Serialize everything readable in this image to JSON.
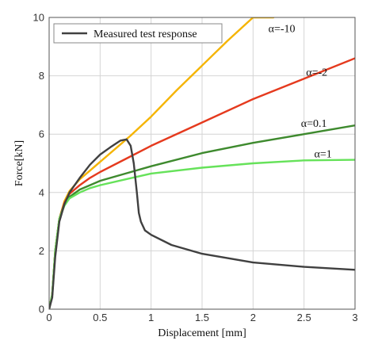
{
  "chart_data": {
    "type": "line",
    "title": "",
    "xlabel": "Displacement [mm]",
    "ylabel": "Force[kN]",
    "xlim": [
      0,
      3
    ],
    "ylim": [
      0,
      10
    ],
    "grid": true,
    "legend_position": "top-left",
    "legend": [
      "Measured test response"
    ],
    "x_ticks": [
      "0",
      "0.5",
      "1",
      "1.5",
      "2",
      "2.5",
      "3"
    ],
    "y_ticks": [
      "0",
      "2",
      "4",
      "6",
      "8",
      "10"
    ],
    "series": [
      {
        "name": "Measured test response",
        "color": "#404040",
        "x": [
          0,
          0.03,
          0.06,
          0.1,
          0.15,
          0.2,
          0.3,
          0.4,
          0.5,
          0.6,
          0.7,
          0.76,
          0.8,
          0.83,
          0.86,
          0.88,
          0.9,
          0.94,
          1.0,
          1.2,
          1.5,
          2.0,
          2.5,
          3.0
        ],
        "y": [
          0,
          0.4,
          1.8,
          3.0,
          3.6,
          4.0,
          4.5,
          4.95,
          5.3,
          5.55,
          5.78,
          5.82,
          5.6,
          5.0,
          4.0,
          3.3,
          3.0,
          2.7,
          2.55,
          2.2,
          1.9,
          1.6,
          1.45,
          1.35
        ]
      },
      {
        "name": "α=-10",
        "color": "#f5b400",
        "x": [
          0,
          0.03,
          0.06,
          0.1,
          0.15,
          0.2,
          0.3,
          0.4,
          0.5,
          0.6,
          0.7,
          0.8,
          1.0,
          1.25,
          1.5,
          1.75,
          2.0,
          2.2
        ],
        "y": [
          0,
          0.5,
          2.0,
          3.1,
          3.7,
          4.05,
          4.45,
          4.75,
          5.05,
          5.35,
          5.65,
          5.95,
          6.6,
          7.5,
          8.35,
          9.2,
          10.0,
          10.0
        ]
      },
      {
        "name": "α=-2",
        "color": "#e53a1e",
        "x": [
          0,
          0.03,
          0.06,
          0.1,
          0.15,
          0.2,
          0.3,
          0.4,
          0.5,
          0.75,
          1.0,
          1.5,
          2.0,
          2.5,
          3.0
        ],
        "y": [
          0,
          0.5,
          2.0,
          3.1,
          3.65,
          3.95,
          4.25,
          4.5,
          4.7,
          5.15,
          5.6,
          6.4,
          7.2,
          7.9,
          8.6
        ]
      },
      {
        "name": "α=0.1",
        "color": "#3e8a2e",
        "x": [
          0,
          0.03,
          0.06,
          0.1,
          0.15,
          0.2,
          0.3,
          0.4,
          0.5,
          0.75,
          1.0,
          1.5,
          2.0,
          2.5,
          3.0
        ],
        "y": [
          0,
          0.5,
          2.0,
          3.1,
          3.6,
          3.85,
          4.1,
          4.25,
          4.4,
          4.65,
          4.9,
          5.35,
          5.7,
          6.0,
          6.3
        ]
      },
      {
        "name": "α=1",
        "color": "#66e25a",
        "x": [
          0,
          0.03,
          0.06,
          0.1,
          0.15,
          0.2,
          0.3,
          0.4,
          0.5,
          0.75,
          1.0,
          1.5,
          2.0,
          2.5,
          3.0
        ],
        "y": [
          0,
          0.5,
          2.0,
          3.1,
          3.55,
          3.8,
          4.0,
          4.15,
          4.25,
          4.45,
          4.65,
          4.85,
          5.0,
          5.1,
          5.12
        ]
      }
    ],
    "annotations": [
      {
        "text": "α=-10",
        "x": 2.15,
        "y": 9.5
      },
      {
        "text": "α=-2",
        "x": 2.52,
        "y": 8.0
      },
      {
        "text": "α=0.1",
        "x": 2.47,
        "y": 6.25
      },
      {
        "text": "α=1",
        "x": 2.6,
        "y": 5.2
      }
    ]
  }
}
